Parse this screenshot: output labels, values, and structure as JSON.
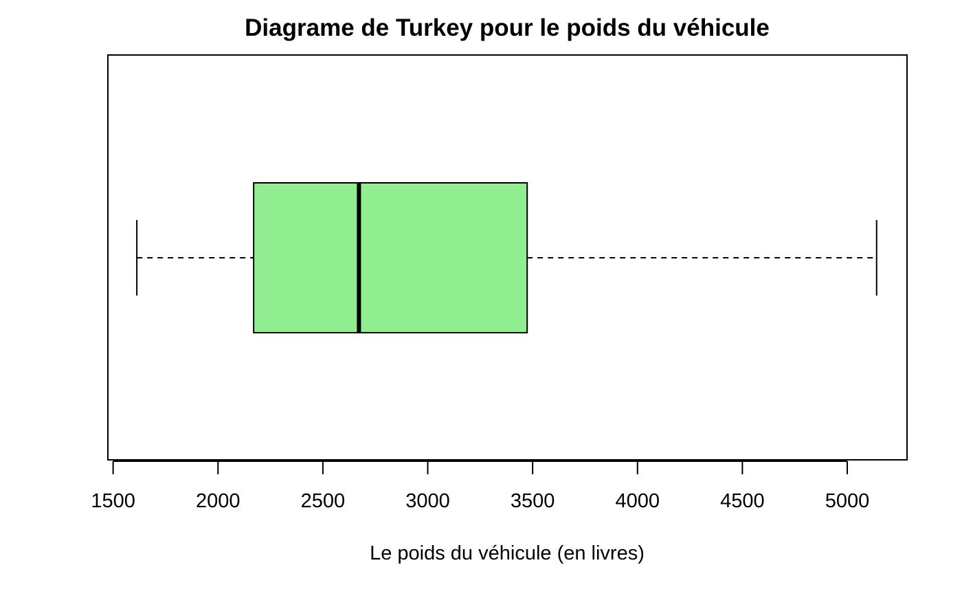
{
  "chart_data": {
    "type": "boxplot",
    "orientation": "horizontal",
    "title": "Diagrame de Turkey pour le poids du véhicule",
    "xlabel": "Le poids du véhicule (en livres)",
    "ylabel": "",
    "xlim": [
      1475,
      5285
    ],
    "xticks": [
      1500,
      2000,
      2500,
      3000,
      3500,
      4000,
      4500,
      5000
    ],
    "xtick_labels": [
      "1500",
      "2000",
      "2500",
      "3000",
      "3500",
      "4000",
      "4500",
      "5000"
    ],
    "box": {
      "min": 1613,
      "q1": 2170,
      "median": 2672,
      "q3": 3474,
      "max": 5140
    },
    "box_fill_color": "#90ee90",
    "line_color": "#000000",
    "grid": false,
    "legend": "none"
  }
}
